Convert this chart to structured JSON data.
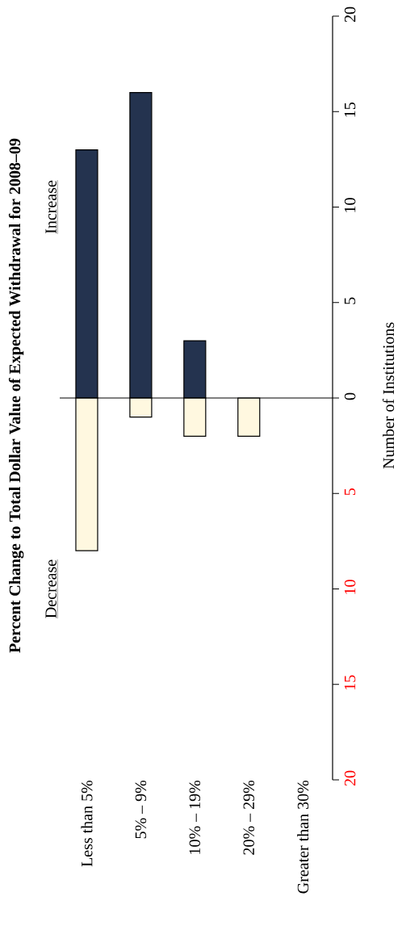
{
  "chart_data": {
    "type": "bar",
    "stacked": true,
    "title": "Percent Change to Total Dollar Value of Expected Withdrawal for 2008–09",
    "ylabel": "Number of Institutions",
    "categories": [
      "Less than 5%",
      "5% – 9%",
      "10% – 19%",
      "20% – 29%",
      "Greater than 30%"
    ],
    "series": [
      {
        "name": "Increase",
        "color": "#24334f",
        "values": [
          13,
          16,
          3,
          0,
          0
        ]
      },
      {
        "name": "Decrease",
        "color": "#fff8e0",
        "values": [
          -8,
          -1,
          -2,
          -2,
          0
        ]
      }
    ],
    "ylim": [
      -20,
      20
    ],
    "yticks": [
      {
        "value": -20,
        "label": "20"
      },
      {
        "value": -15,
        "label": "15"
      },
      {
        "value": -10,
        "label": "10"
      },
      {
        "value": -5,
        "label": "5"
      },
      {
        "value": 0,
        "label": "0"
      },
      {
        "value": 5,
        "label": "5"
      },
      {
        "value": 10,
        "label": "10"
      },
      {
        "value": 15,
        "label": "15"
      },
      {
        "value": 20,
        "label": "20"
      }
    ],
    "ref_lines": [
      {
        "axis": "y",
        "value": 0,
        "color": "#000000"
      }
    ],
    "grid": false,
    "legend": false
  }
}
